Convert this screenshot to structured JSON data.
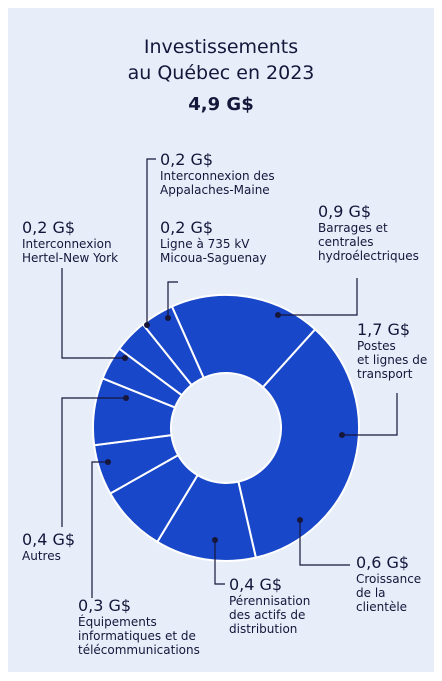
{
  "chart_data": {
    "type": "donut",
    "title": "Investissements\nau Québec en 2023",
    "total_label": "4,9 G$",
    "categories": [
      "Barrages et\ncentrales\nhydroélectriques",
      "Postes\net lignes de\ntransport",
      "Croissance\nde la\nclientèle",
      "Pérennisation\ndes actifs de\ndistribution",
      "Équipements\ninformatiques et de\ntélécommunications",
      "Autres",
      "Interconnexion\nHertel-New York",
      "Interconnexion des\nAppalaches-Maine",
      "Ligne à 735 kV\nMicoua-Saguenay"
    ],
    "values": [
      0.9,
      1.7,
      0.6,
      0.4,
      0.3,
      0.4,
      0.2,
      0.2,
      0.2
    ],
    "value_labels": [
      "0,9 G$",
      "1,7 G$",
      "0,6 G$",
      "0,4 G$",
      "0,3 G$",
      "0,4 G$",
      "0,2 G$",
      "0,2 G$",
      "0,2 G$"
    ],
    "color": "#1947c9"
  }
}
